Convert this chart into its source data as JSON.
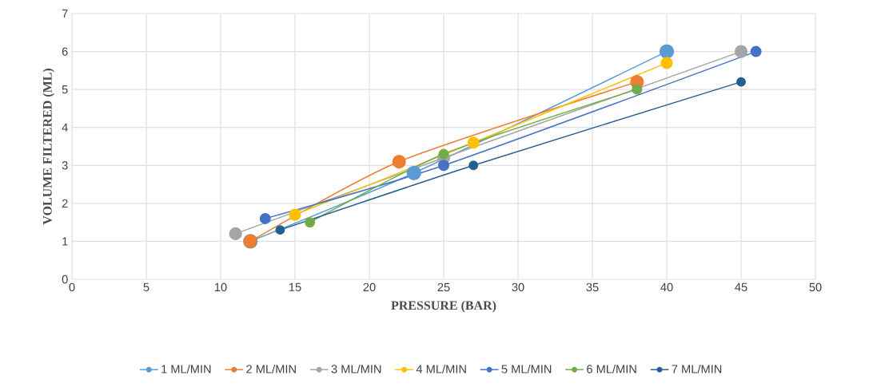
{
  "chart_data": {
    "type": "line",
    "xlabel": "PRESSURE (BAR)",
    "ylabel": "VOLUME FILTERED (ML)",
    "xlim": [
      0,
      50
    ],
    "ylim": [
      0,
      7
    ],
    "xticks": [
      0,
      5,
      10,
      15,
      20,
      25,
      30,
      35,
      40,
      45,
      50
    ],
    "yticks": [
      0,
      1,
      2,
      3,
      4,
      5,
      6,
      7
    ],
    "grid": true,
    "legend": "bottom",
    "marker": "circle",
    "line_style": "solid",
    "series": [
      {
        "name": "1 ML/MIN",
        "color": "#5b9bd5",
        "x": [
          12,
          23,
          40
        ],
        "values": [
          1,
          2.8,
          6
        ]
      },
      {
        "name": "2 ML/MIN",
        "color": "#ed7d31",
        "x": [
          12,
          22,
          38
        ],
        "values": [
          1,
          3.1,
          5.2
        ]
      },
      {
        "name": "3 ML/MIN",
        "color": "#a5a5a5",
        "x": [
          11,
          25,
          45
        ],
        "values": [
          1.2,
          3.2,
          6
        ]
      },
      {
        "name": "4 ML/MIN",
        "color": "#ffc000",
        "x": [
          15,
          27,
          40
        ],
        "values": [
          1.7,
          3.6,
          5.7
        ]
      },
      {
        "name": "5 ML/MIN",
        "color": "#4472c4",
        "x": [
          13,
          25,
          46
        ],
        "values": [
          1.6,
          3,
          6
        ]
      },
      {
        "name": "6 ML/MIN",
        "color": "#70ad47",
        "x": [
          16,
          25,
          38
        ],
        "values": [
          1.5,
          3.3,
          5
        ]
      },
      {
        "name": "7 ML/MIN",
        "color": "#255e91",
        "x": [
          14,
          27,
          45
        ],
        "values": [
          1.3,
          3,
          5.2
        ]
      }
    ]
  }
}
